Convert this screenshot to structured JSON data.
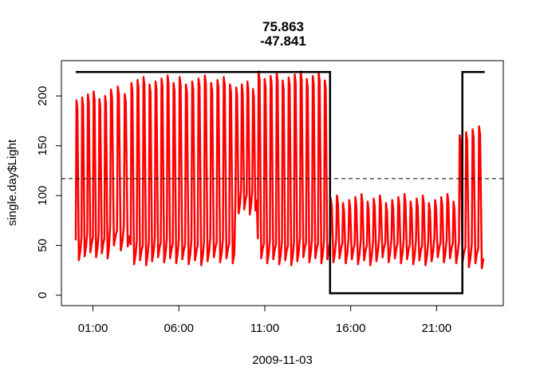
{
  "chart_data": {
    "type": "line",
    "title_lines": [
      "75.863",
      "-47.841"
    ],
    "xlabel": "2009-11-03",
    "ylabel": "single.day$Light",
    "xlim": [
      0,
      24
    ],
    "ylim": [
      0,
      225
    ],
    "x_ticks": [
      {
        "value": 1,
        "label": "01:00"
      },
      {
        "value": 6,
        "label": "06:00"
      },
      {
        "value": 11,
        "label": "11:00"
      },
      {
        "value": 16,
        "label": "16:00"
      },
      {
        "value": 21,
        "label": "21:00"
      }
    ],
    "y_ticks": [
      0,
      50,
      100,
      150,
      200
    ],
    "reference_line": {
      "y": 117,
      "style": "dashed",
      "color": "#000000"
    },
    "day_night_series": {
      "name": "",
      "color": "#000000",
      "points": [
        [
          0,
          224
        ],
        [
          14.8,
          224
        ],
        [
          14.8,
          2
        ],
        [
          22.5,
          2
        ],
        [
          22.5,
          224
        ],
        [
          23.8,
          224
        ]
      ]
    },
    "light_series": {
      "name": "",
      "color": "#ff0000",
      "cycle_hours": 0.36,
      "segments": [
        {
          "x_start": 0.0,
          "x_end": 2.0,
          "peak": 200,
          "trough": 35
        },
        {
          "x_start": 2.0,
          "x_end": 3.2,
          "peak": 205,
          "trough": 45
        },
        {
          "x_start": 3.2,
          "x_end": 6.0,
          "peak": 216,
          "trough": 30
        },
        {
          "x_start": 6.0,
          "x_end": 9.3,
          "peak": 216,
          "trough": 30
        },
        {
          "x_start": 9.3,
          "x_end": 10.6,
          "peak": 210,
          "trough": 80
        },
        {
          "x_start": 10.6,
          "x_end": 14.8,
          "peak": 220,
          "trough": 30
        },
        {
          "x_start": 14.8,
          "x_end": 22.3,
          "peak": 97,
          "trough": 30
        },
        {
          "x_start": 22.3,
          "x_end": 23.8,
          "peak": 165,
          "trough": 25
        }
      ]
    }
  }
}
